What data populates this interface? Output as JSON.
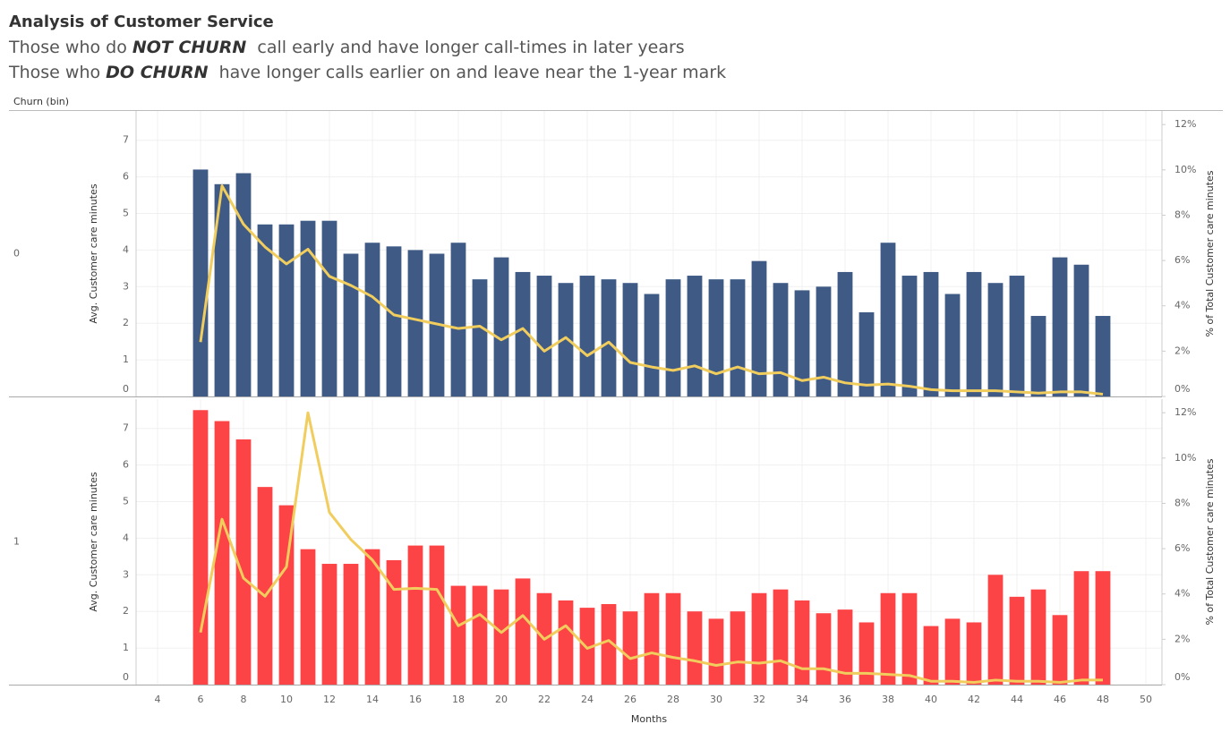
{
  "title": "Analysis of Customer Service",
  "subtitle": [
    [
      "Those who do ",
      "NOT CHURN",
      "  call early and have longer call-times in later years"
    ],
    [
      "Those who ",
      "DO CHURN",
      "  have longer calls earlier on and leave near the 1-year mark"
    ]
  ],
  "row_header": "Churn (bin)",
  "chart_data": [
    {
      "type": "combo",
      "row_label": "0",
      "ylabel": "Avg. Customer care minutes",
      "y2label": "% of Total Customer care minutes",
      "x": [
        6,
        7,
        8,
        9,
        10,
        11,
        12,
        13,
        14,
        15,
        16,
        17,
        18,
        19,
        20,
        21,
        22,
        23,
        24,
        25,
        26,
        27,
        28,
        29,
        30,
        31,
        32,
        33,
        34,
        35,
        36,
        37,
        38,
        39,
        40,
        41,
        42,
        43,
        44,
        45,
        46,
        47,
        48
      ],
      "xlim": [
        3,
        50.75
      ],
      "ylim": [
        0,
        7.8
      ],
      "yticks": [
        0,
        1,
        2,
        3,
        4,
        5,
        6,
        7
      ],
      "y2lim": [
        0,
        12.6
      ],
      "y2ticks": [
        {
          "value": 0,
          "label": "0%"
        },
        {
          "value": 2,
          "label": "2%"
        },
        {
          "value": 4,
          "label": "4%"
        },
        {
          "value": 6,
          "label": "6%"
        },
        {
          "value": 8,
          "label": "8%"
        },
        {
          "value": 10,
          "label": "10%"
        },
        {
          "value": 12,
          "label": "12%"
        }
      ],
      "series": [
        {
          "type": "bar",
          "color": "#3e5a85",
          "values": [
            6.2,
            5.8,
            6.1,
            4.7,
            4.7,
            4.8,
            4.8,
            3.9,
            4.2,
            4.1,
            4.0,
            3.9,
            4.2,
            3.2,
            3.8,
            3.4,
            3.3,
            3.1,
            3.3,
            3.2,
            3.1,
            2.8,
            3.2,
            3.3,
            3.2,
            3.2,
            3.7,
            3.1,
            2.9,
            3.0,
            3.4,
            2.3,
            4.2,
            3.3,
            3.4,
            2.8,
            3.4,
            3.1,
            3.3,
            2.2,
            3.8,
            3.6,
            2.2
          ]
        },
        {
          "type": "line",
          "axis": "y2",
          "color": "#f1cd5e",
          "values": [
            2.4,
            9.3,
            7.6,
            6.6,
            5.85,
            6.5,
            5.3,
            4.9,
            4.4,
            3.6,
            3.4,
            3.2,
            3.0,
            3.1,
            2.5,
            3.0,
            2.0,
            2.6,
            1.8,
            2.4,
            1.5,
            1.3,
            1.15,
            1.35,
            1.0,
            1.3,
            1.0,
            1.05,
            0.7,
            0.85,
            0.6,
            0.5,
            0.55,
            0.45,
            0.3,
            0.25,
            0.25,
            0.25,
            0.2,
            0.15,
            0.2,
            0.2,
            0.1
          ]
        }
      ]
    },
    {
      "type": "combo",
      "row_label": "1",
      "ylabel": "Avg. Customer care minutes",
      "y2label": "% of Total Customer care minutes",
      "xlabel": "Months",
      "x": [
        6,
        7,
        8,
        9,
        10,
        11,
        12,
        13,
        14,
        15,
        16,
        17,
        18,
        19,
        20,
        21,
        22,
        23,
        24,
        25,
        26,
        27,
        28,
        29,
        30,
        31,
        32,
        33,
        34,
        35,
        36,
        37,
        38,
        39,
        40,
        41,
        42,
        43,
        44,
        45,
        46,
        47,
        48
      ],
      "xlim": [
        3,
        50.75
      ],
      "xticks": [
        4,
        6,
        8,
        10,
        12,
        14,
        16,
        18,
        20,
        22,
        24,
        26,
        28,
        30,
        32,
        34,
        36,
        38,
        40,
        42,
        44,
        46,
        48,
        50
      ],
      "ylim": [
        0,
        7.8
      ],
      "yticks": [
        0,
        1,
        2,
        3,
        4,
        5,
        6,
        7
      ],
      "y2lim": [
        0,
        12.6
      ],
      "y2ticks": [
        {
          "value": 0,
          "label": "0%"
        },
        {
          "value": 2,
          "label": "2%"
        },
        {
          "value": 4,
          "label": "4%"
        },
        {
          "value": 6,
          "label": "6%"
        },
        {
          "value": 8,
          "label": "8%"
        },
        {
          "value": 10,
          "label": "10%"
        },
        {
          "value": 12,
          "label": "12%"
        }
      ],
      "series": [
        {
          "type": "bar",
          "color": "#fc4345",
          "values": [
            7.5,
            7.2,
            6.7,
            5.4,
            4.9,
            3.7,
            3.3,
            3.3,
            3.7,
            3.4,
            3.8,
            3.8,
            2.7,
            2.7,
            2.6,
            2.9,
            2.5,
            2.3,
            2.1,
            2.2,
            2.0,
            2.5,
            2.5,
            2.0,
            1.8,
            2.0,
            2.5,
            2.6,
            2.3,
            1.95,
            2.05,
            1.7,
            2.5,
            2.5,
            1.6,
            1.8,
            1.7,
            3.0,
            2.4,
            2.6,
            1.9,
            3.1,
            3.1
          ]
        },
        {
          "type": "line",
          "axis": "y2",
          "color": "#f1cd5e",
          "values": [
            2.3,
            7.3,
            4.7,
            3.9,
            5.2,
            12.0,
            7.6,
            6.4,
            5.5,
            4.2,
            4.25,
            4.2,
            2.6,
            3.1,
            2.3,
            3.05,
            2.0,
            2.6,
            1.6,
            1.95,
            1.15,
            1.4,
            1.2,
            1.05,
            0.85,
            1.0,
            0.95,
            1.05,
            0.7,
            0.7,
            0.5,
            0.5,
            0.45,
            0.4,
            0.15,
            0.15,
            0.1,
            0.2,
            0.15,
            0.15,
            0.1,
            0.2,
            0.2
          ]
        }
      ]
    }
  ]
}
